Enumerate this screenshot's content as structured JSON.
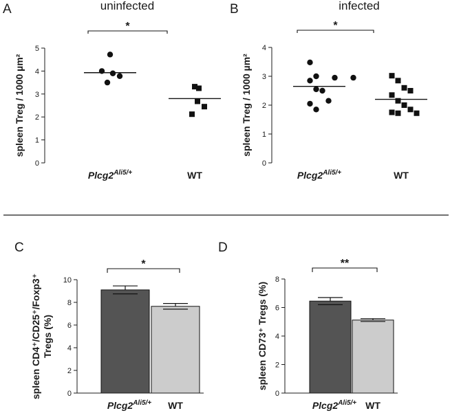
{
  "chart_data": [
    {
      "id": "A",
      "type": "scatter",
      "panel_label": "A",
      "title": "uninfected",
      "ylabel": "spleen Treg / 1000 µm²",
      "ylim": [
        0,
        5
      ],
      "yticks": [
        0,
        1,
        2,
        3,
        4,
        5
      ],
      "categories": [
        {
          "base": "Plcg2",
          "sup": "Ali5/+",
          "italic": true
        },
        {
          "base": "WT",
          "sup": "",
          "italic": false
        }
      ],
      "groups": [
        {
          "name": "Plcg2 Ali5/+",
          "marker": "circle",
          "values": [
            4.72,
            4.0,
            3.9,
            3.78,
            3.5
          ],
          "mean": 3.93
        },
        {
          "name": "WT",
          "marker": "square",
          "values": [
            3.32,
            3.25,
            2.68,
            2.45,
            2.12
          ],
          "mean": 2.8
        }
      ],
      "significance": "*"
    },
    {
      "id": "B",
      "type": "scatter",
      "panel_label": "B",
      "title": "infected",
      "ylabel": "spleen Treg / 1000 µm²",
      "ylim": [
        0,
        4
      ],
      "yticks": [
        0,
        1,
        2,
        3,
        4
      ],
      "categories": [
        {
          "base": "Plcg2",
          "sup": "Ali5/+",
          "italic": true
        },
        {
          "base": "WT",
          "sup": "",
          "italic": false
        }
      ],
      "groups": [
        {
          "name": "Plcg2 Ali5/+",
          "marker": "circle",
          "values": [
            3.48,
            3.0,
            2.95,
            2.95,
            2.85,
            2.55,
            2.5,
            2.15,
            2.05,
            1.85
          ],
          "mean": 2.65
        },
        {
          "name": "WT",
          "marker": "square",
          "values": [
            3.02,
            2.85,
            2.6,
            2.5,
            2.35,
            2.15,
            2.0,
            1.85,
            1.75,
            1.72,
            1.72
          ],
          "mean": 2.2
        }
      ],
      "significance": "*"
    },
    {
      "id": "C",
      "type": "bar",
      "panel_label": "C",
      "ylabel_lines": [
        "spleen CD4⁺/CD25⁺/Foxp3⁺",
        "Tregs (%)"
      ],
      "ylim": [
        0,
        10
      ],
      "yticks": [
        0,
        2,
        4,
        6,
        8,
        10
      ],
      "categories": [
        {
          "base": "Plcg2",
          "sup": "Ali5/+",
          "italic": true
        },
        {
          "base": "WT",
          "sup": "",
          "italic": false
        }
      ],
      "values": [
        9.1,
        7.65
      ],
      "errors": [
        0.35,
        0.25
      ],
      "colors": [
        "#545454",
        "#cccccc"
      ],
      "significance": "*"
    },
    {
      "id": "D",
      "type": "bar",
      "panel_label": "D",
      "ylabel": "spleen CD73⁺ Tregs (%)",
      "ylim": [
        0,
        8
      ],
      "yticks": [
        0,
        2,
        4,
        6,
        8
      ],
      "categories": [
        {
          "base": "Plcg2",
          "sup": "Ali5/+",
          "italic": true
        },
        {
          "base": "WT",
          "sup": "",
          "italic": false
        }
      ],
      "values": [
        6.45,
        5.12
      ],
      "errors": [
        0.25,
        0.1
      ],
      "colors": [
        "#545454",
        "#cccccc"
      ],
      "significance": "**"
    }
  ]
}
